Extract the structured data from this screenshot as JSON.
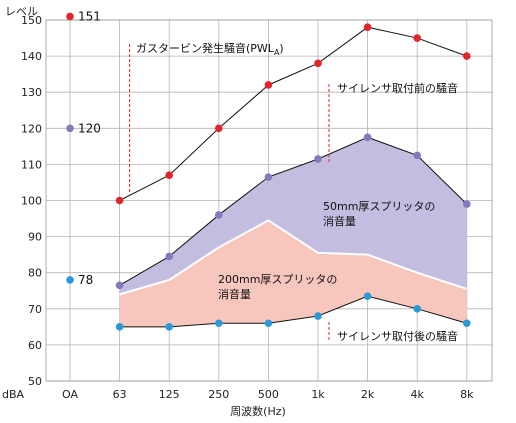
{
  "chart_data": {
    "type": "line",
    "ylabel": "レベル",
    "yunit": "dBA",
    "xlabel": "周波数(Hz)",
    "ylim": [
      50,
      150
    ],
    "yticks": [
      50,
      60,
      70,
      80,
      90,
      100,
      110,
      120,
      130,
      140,
      150
    ],
    "categories": [
      "OA",
      "63",
      "125",
      "250",
      "500",
      "1k",
      "2k",
      "4k",
      "8k"
    ],
    "oa_points": [
      {
        "label": "151",
        "value": 151,
        "color": "#e0262a"
      },
      {
        "label": "120",
        "value": 120,
        "color": "#8877bb"
      },
      {
        "label": "78",
        "value": 78,
        "color": "#2a9ad6"
      }
    ],
    "series": [
      {
        "name": "ガスタービン発生騒音(PWLA)",
        "color": "#e0262a",
        "values": [
          null,
          100,
          107,
          120,
          132,
          138,
          148,
          145,
          140
        ]
      },
      {
        "name": "サイレンサ取付前の騒音",
        "color": "#8877bb",
        "values": [
          null,
          76.5,
          84.5,
          96,
          106.5,
          111.5,
          117.5,
          112.5,
          99
        ]
      },
      {
        "name": "サイレンサ取付後の騒音",
        "color": "#2a9ad6",
        "values": [
          null,
          65,
          65,
          66,
          66,
          68,
          73.5,
          70,
          66
        ]
      }
    ],
    "split_boundary": [
      null,
      74,
      78,
      87,
      94.5,
      85.5,
      85,
      80,
      75.5
    ],
    "areas": [
      {
        "name": "50mm厚スプリッタの消音量",
        "line1": "50mm厚スプリッタの",
        "line2": "消音量",
        "color": "#c3bde0"
      },
      {
        "name": "200mm厚スプリッタの消音量",
        "line1": "200mm厚スプリッタの",
        "line2": "消音量",
        "color": "#f7c6bd"
      }
    ],
    "annotations": {
      "pwl": "ガスタービン発生騒音(PWL",
      "pwl_sub": "A",
      "pwl_close": ")",
      "before": "サイレンサ取付前の騒音",
      "after": "サイレンサ取付後の騒音"
    },
    "grid": true
  }
}
